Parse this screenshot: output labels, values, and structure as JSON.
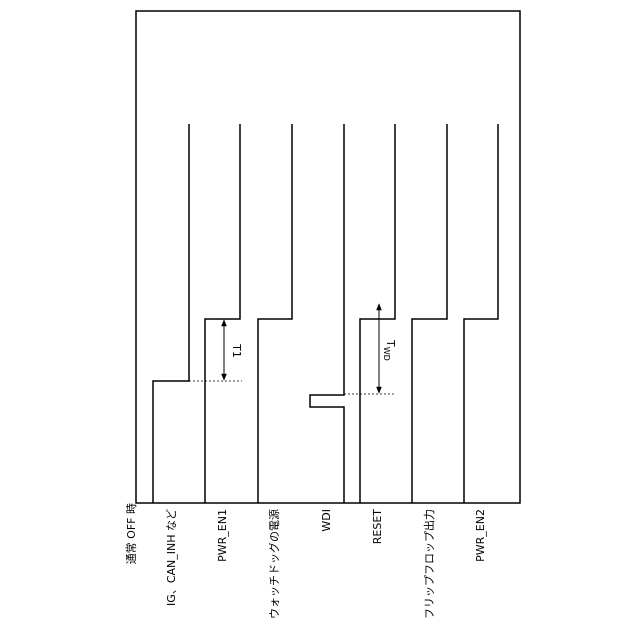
{
  "diagram": {
    "condition_label": "通常 OFF 時",
    "signals": [
      "IG、CAN_INH など",
      "PWR_EN1",
      "ウォッチドッグの電源",
      "WDI",
      "RESET",
      "フリップフロップ出力",
      "PWR_EN2"
    ],
    "annotations": {
      "t1": "T1",
      "twd_main": "T",
      "twd_sub": "WD"
    }
  }
}
